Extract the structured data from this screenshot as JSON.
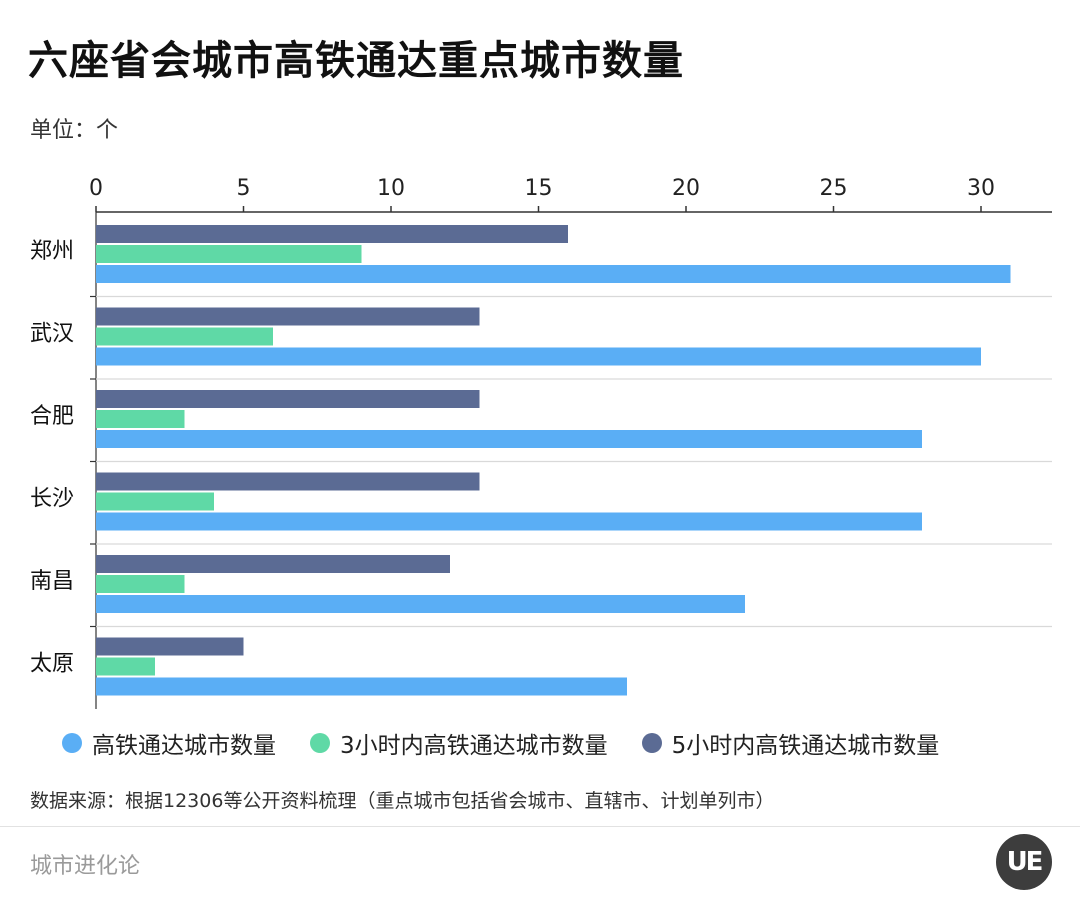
{
  "title": "六座省会城市高铁通达重点城市数量",
  "unit": "单位：个",
  "legend": {
    "item0": "高铁通达城市数量",
    "item1": "3小时内高铁通达城市数量",
    "item2": "5小时内高铁通达城市数量"
  },
  "source": "数据来源：根据12306等公开资料梳理（重点城市包括省会城市、直辖市、计划单列市）",
  "brand": "城市进化论",
  "logo_text": "UE",
  "colors": {
    "total": "#5aaef5",
    "three_hour": "#5fd9a6",
    "five_hour": "#5b6b94"
  },
  "chart_data": {
    "type": "bar",
    "orientation": "horizontal",
    "categories": [
      "郑州",
      "武汉",
      "合肥",
      "长沙",
      "南昌",
      "太原"
    ],
    "series": [
      {
        "name": "5小时内高铁通达城市数量",
        "values": [
          16,
          13,
          13,
          13,
          12,
          5
        ]
      },
      {
        "name": "3小时内高铁通达城市数量",
        "values": [
          9,
          6,
          3,
          4,
          3,
          2
        ]
      },
      {
        "name": "高铁通达城市数量",
        "values": [
          31,
          30,
          28,
          28,
          22,
          18
        ]
      }
    ],
    "xticks": [
      "0",
      "5",
      "10",
      "15",
      "20",
      "25",
      "30"
    ],
    "xlim": [
      0,
      32
    ],
    "axis_position": "top",
    "legend_position": "bottom",
    "grid": "horizontal separators"
  }
}
